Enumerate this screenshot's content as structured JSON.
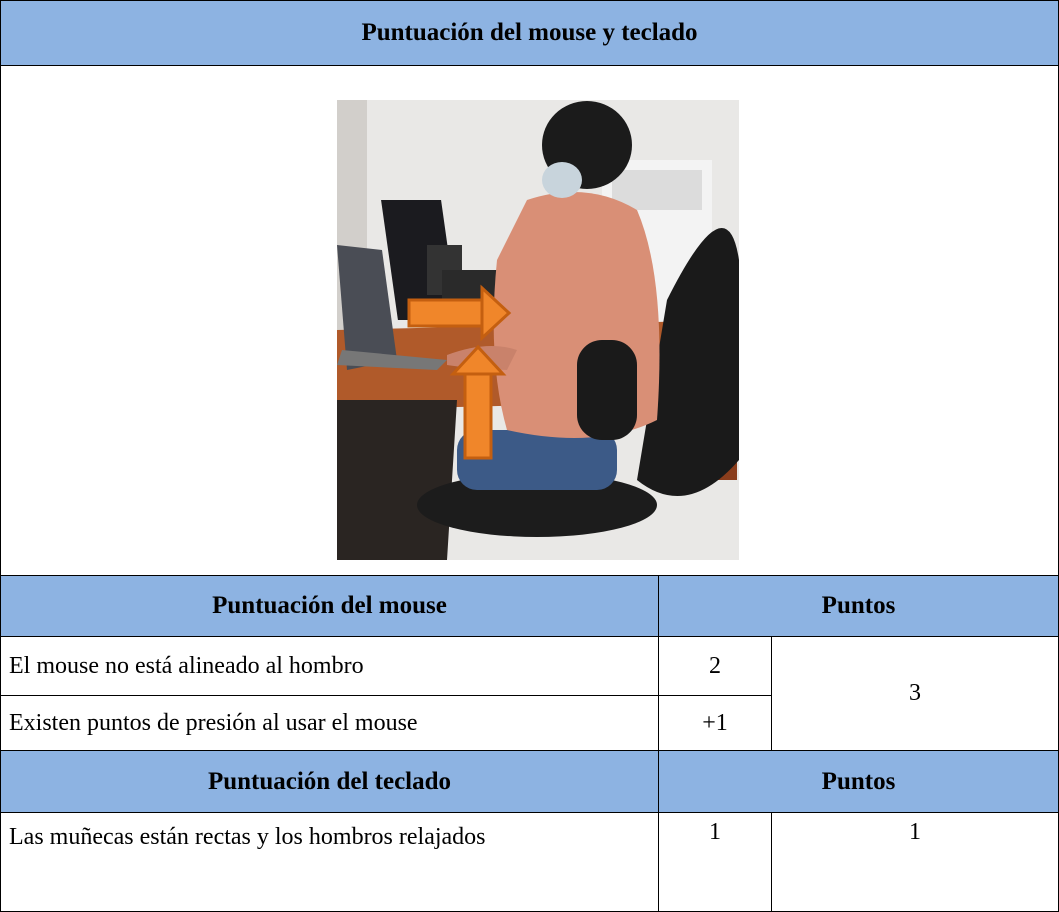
{
  "title": "Puntuación del mouse y teclado",
  "mouse": {
    "header": "Puntuación del mouse",
    "points_header": "Puntos",
    "rows": [
      {
        "text": "El mouse no está alineado al hombro",
        "score": 2
      },
      {
        "text": "Existen puntos de presión al usar el mouse",
        "score": "+1"
      }
    ],
    "total": 3
  },
  "keyboard": {
    "header": "Puntuación del teclado",
    "points_header": "Puntos",
    "rows": [
      {
        "text": "Las muñecas están rectas y los hombros relajados",
        "score": 1
      }
    ],
    "total": 1
  }
}
